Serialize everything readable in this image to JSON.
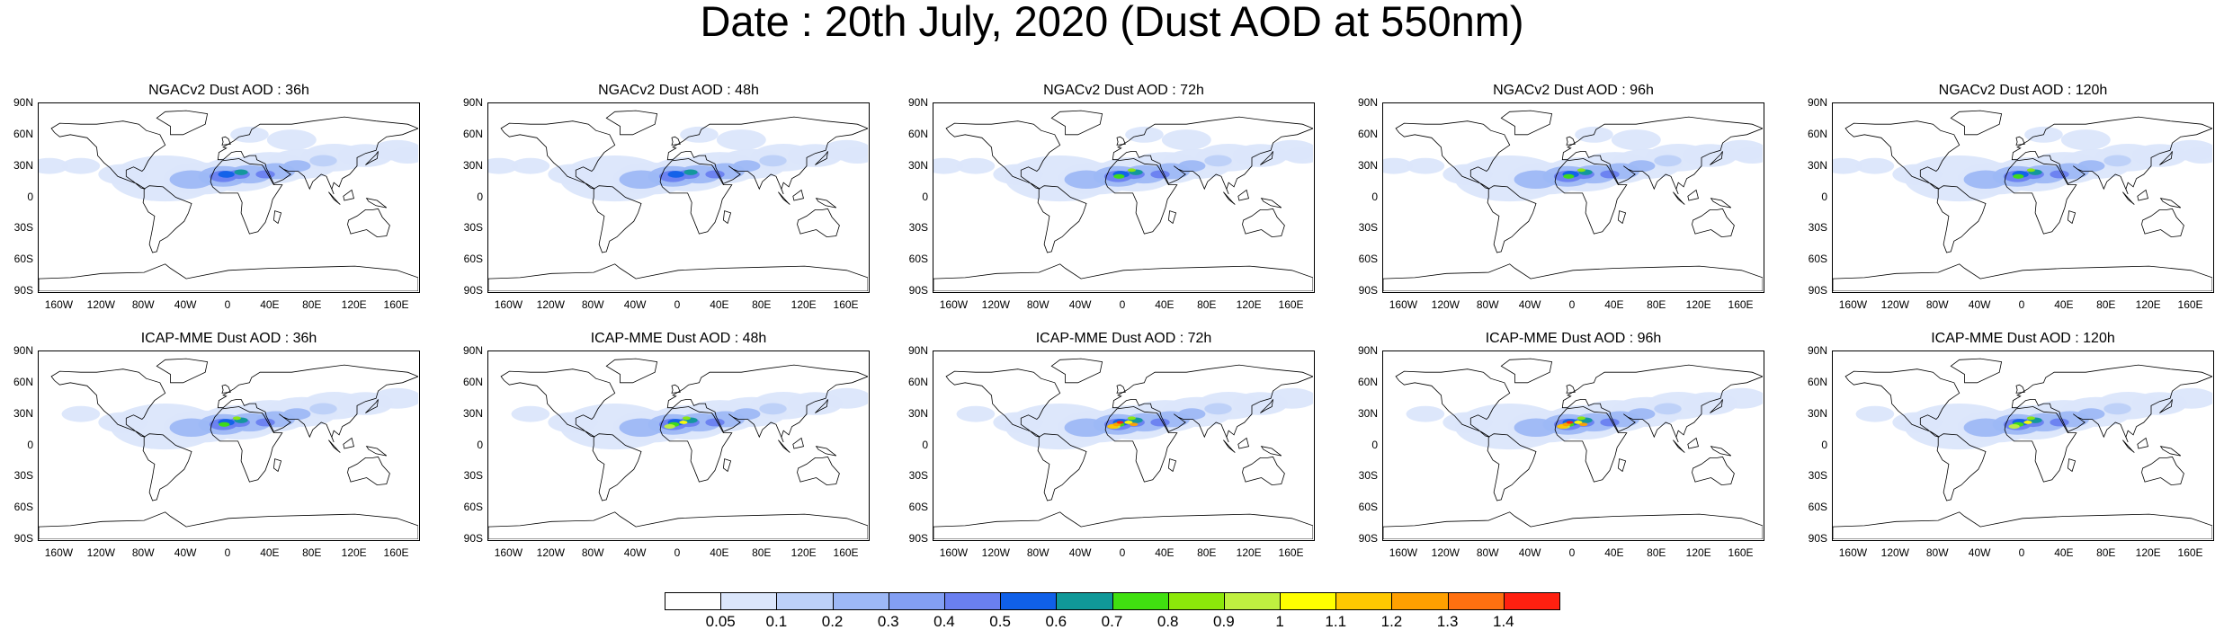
{
  "title": "Date : 20th July, 2020 (Dust AOD at 550nm)",
  "colors": {
    "frame": "#000000",
    "coast": "#000000",
    "levels": [
      "#ffffff",
      "#dbe6fb",
      "#bcd0f8",
      "#9db8f6",
      "#839ff3",
      "#6a7ff0",
      "#1060e8",
      "#109898",
      "#40e010",
      "#8ce80a",
      "#c0f040",
      "#ffff00",
      "#ffc800",
      "#ffa000",
      "#ff7010",
      "#ff2010"
    ]
  },
  "lat_labels": [
    "90N",
    "60N",
    "30N",
    "0",
    "30S",
    "60S",
    "90S"
  ],
  "lon_labels": [
    "160W",
    "120W",
    "80W",
    "40W",
    "0",
    "40E",
    "80E",
    "120E",
    "160E"
  ],
  "colorbar": {
    "labels": [
      "0.05",
      "0.1",
      "0.2",
      "0.3",
      "0.4",
      "0.5",
      "0.6",
      "0.7",
      "0.8",
      "0.9",
      "1",
      "1.1",
      "1.2",
      "1.3",
      "1.4"
    ]
  },
  "panels": [
    {
      "title": "NGACv2 Dust AOD : 36h",
      "intensity": 0.85
    },
    {
      "title": "NGACv2 Dust AOD : 48h",
      "intensity": 0.85
    },
    {
      "title": "NGACv2 Dust AOD : 72h",
      "intensity": 0.9
    },
    {
      "title": "NGACv2 Dust AOD : 96h",
      "intensity": 0.9
    },
    {
      "title": "NGACv2 Dust AOD : 120h",
      "intensity": 0.9
    },
    {
      "title": "ICAP-MME Dust AOD : 36h",
      "intensity": 0.95
    },
    {
      "title": "ICAP-MME Dust AOD : 48h",
      "intensity": 1.05
    },
    {
      "title": "ICAP-MME Dust AOD : 72h",
      "intensity": 1.35
    },
    {
      "title": "ICAP-MME Dust AOD : 96h",
      "intensity": 1.35
    },
    {
      "title": "ICAP-MME Dust AOD : 120h",
      "intensity": 1.05
    }
  ]
}
